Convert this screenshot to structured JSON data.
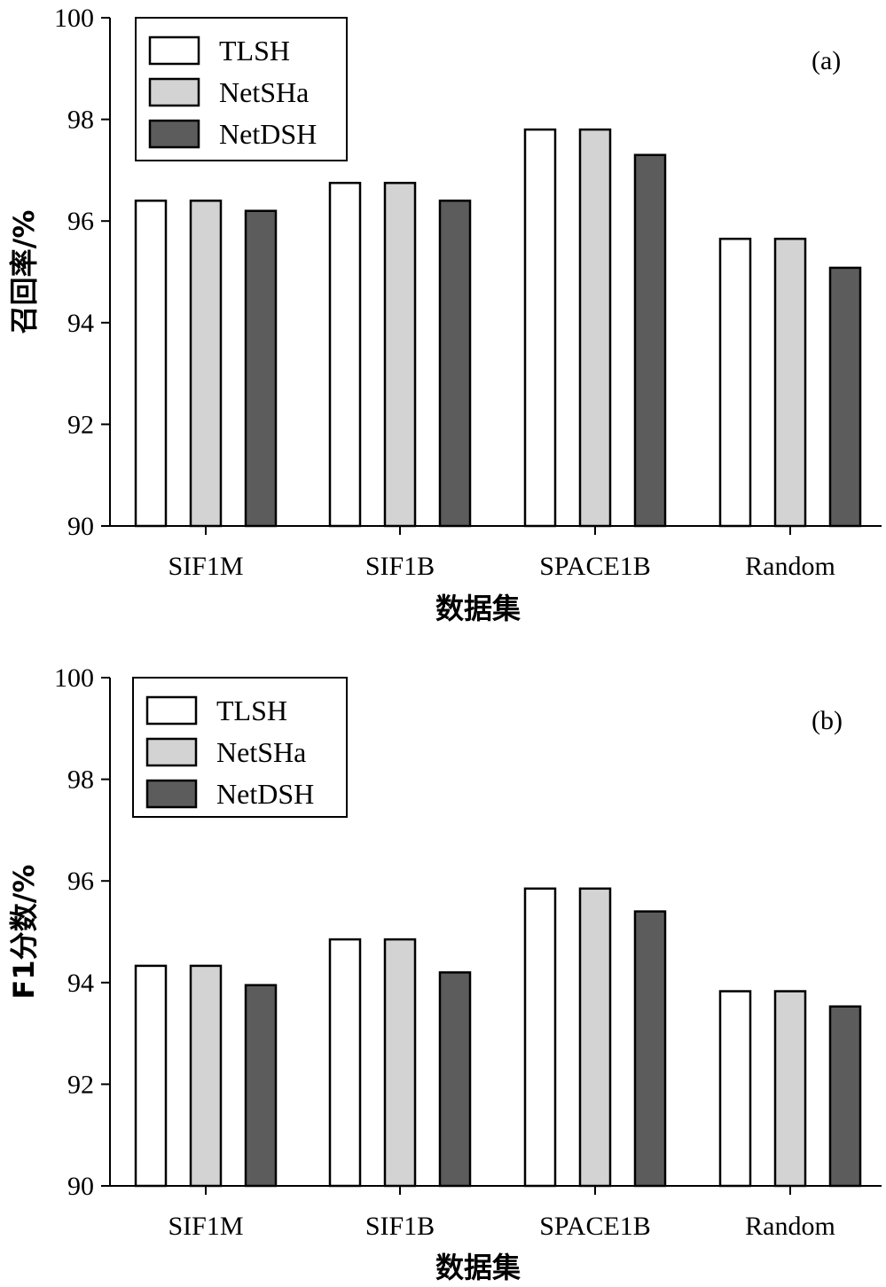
{
  "colors": {
    "TLSH": "#ffffff",
    "NetSHa": "#d3d3d3",
    "NetDSH": "#5c5c5c",
    "stroke": "#000000"
  },
  "chart_data": [
    {
      "type": "bar",
      "panel_label": "(a)",
      "categories": [
        "SIF1M",
        "SIF1B",
        "SPACE1B",
        "Random"
      ],
      "series": [
        {
          "name": "TLSH",
          "values": [
            96.4,
            96.75,
            97.8,
            95.65
          ]
        },
        {
          "name": "NetSHa",
          "values": [
            96.4,
            96.75,
            97.8,
            95.65
          ]
        },
        {
          "name": "NetDSH",
          "values": [
            96.2,
            96.4,
            97.3,
            95.08
          ]
        }
      ],
      "xlabel": "数据集",
      "ylabel": "召回率/%",
      "ylim": [
        90,
        100
      ],
      "yticks": [
        90,
        92,
        94,
        96,
        98,
        100
      ],
      "legend": "top-left",
      "grid": false
    },
    {
      "type": "bar",
      "panel_label": "(b)",
      "categories": [
        "SIF1M",
        "SIF1B",
        "SPACE1B",
        "Random"
      ],
      "series": [
        {
          "name": "TLSH",
          "values": [
            94.33,
            94.85,
            95.85,
            93.83
          ]
        },
        {
          "name": "NetSHa",
          "values": [
            94.33,
            94.85,
            95.85,
            93.83
          ]
        },
        {
          "name": "NetDSH",
          "values": [
            93.95,
            94.2,
            95.4,
            93.53
          ]
        }
      ],
      "xlabel": "数据集",
      "ylabel": "F1分数/%",
      "ylim": [
        90,
        100
      ],
      "yticks": [
        90,
        92,
        94,
        96,
        98,
        100
      ],
      "legend": "top-left",
      "grid": false
    }
  ]
}
